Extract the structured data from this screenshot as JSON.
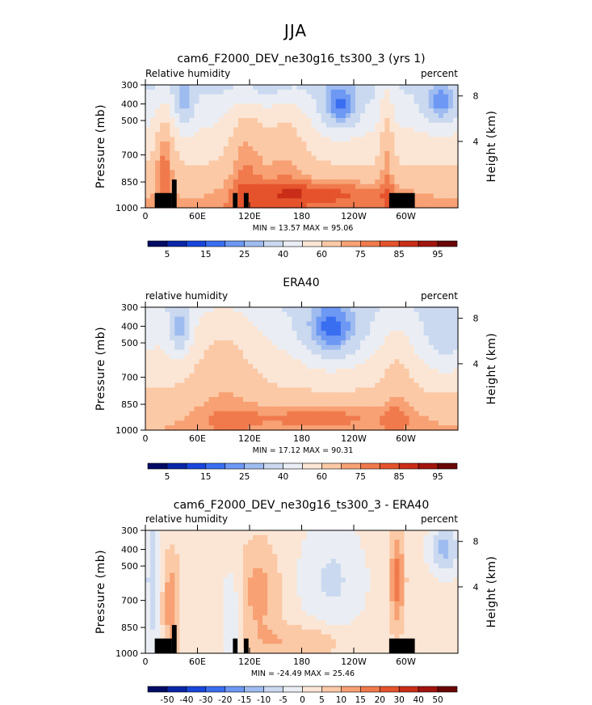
{
  "figure": {
    "season": "JJA",
    "xticks": [
      "0",
      "60E",
      "120E",
      "180",
      "120W",
      "60W"
    ],
    "pressure_ticks": [
      "300",
      "400",
      "500",
      "700",
      "850",
      "1000"
    ],
    "height_ticks": [
      "8",
      "4"
    ],
    "ylabel_left": "Pressure (mb)",
    "ylabel_right": "Height (km)"
  },
  "chart_data": [
    {
      "type": "heatmap",
      "title": "cam6_F2000_DEV_ne30g16_ts300_3 (yrs 1)",
      "label_left": "Relative humidity",
      "label_right": "percent",
      "min_max": "MIN =   13.57   MAX =   95.06",
      "min": 13.57,
      "max": 95.06,
      "colorbar_labels": [
        "5",
        "15",
        "25",
        "40",
        "60",
        "75",
        "85",
        "95"
      ],
      "colorbar_levels": [
        5,
        10,
        15,
        20,
        25,
        30,
        40,
        50,
        60,
        70,
        75,
        80,
        85,
        90,
        95
      ]
    },
    {
      "type": "heatmap",
      "title": "ERA40",
      "label_left": "relative humidity",
      "label_right": "percent",
      "min_max": "MIN =   17.12   MAX =   90.31",
      "min": 17.12,
      "max": 90.31,
      "colorbar_labels": [
        "5",
        "15",
        "25",
        "40",
        "60",
        "75",
        "85",
        "95"
      ],
      "colorbar_levels": [
        5,
        10,
        15,
        20,
        25,
        30,
        40,
        50,
        60,
        70,
        75,
        80,
        85,
        90,
        95
      ]
    },
    {
      "type": "heatmap",
      "title": "cam6_F2000_DEV_ne30g16_ts300_3 - ERA40",
      "label_left": "relative humidity",
      "label_right": "percent",
      "min_max": "MIN = -24.49   MAX =   25.46",
      "min": -24.49,
      "max": 25.46,
      "colorbar_labels": [
        "-50",
        "-40",
        "-30",
        "-20",
        "-15",
        "-10",
        "-5",
        "0",
        "5",
        "10",
        "15",
        "20",
        "30",
        "40",
        "50"
      ],
      "colorbar_levels": [
        -50,
        -40,
        -30,
        -20,
        -15,
        -10,
        -5,
        0,
        5,
        10,
        15,
        20,
        30,
        40,
        50
      ]
    }
  ],
  "colors": {
    "scale": [
      "#020c64",
      "#0a26a8",
      "#1846dc",
      "#3a6ef0",
      "#6d98f4",
      "#9fbcf0",
      "#cad9f0",
      "#eaeef4",
      "#fbe6d6",
      "#fbc9a6",
      "#f7a174",
      "#f07a4c",
      "#e5532c",
      "#c92d18",
      "#a2140e",
      "#6a0606"
    ],
    "topo": "#000000"
  }
}
